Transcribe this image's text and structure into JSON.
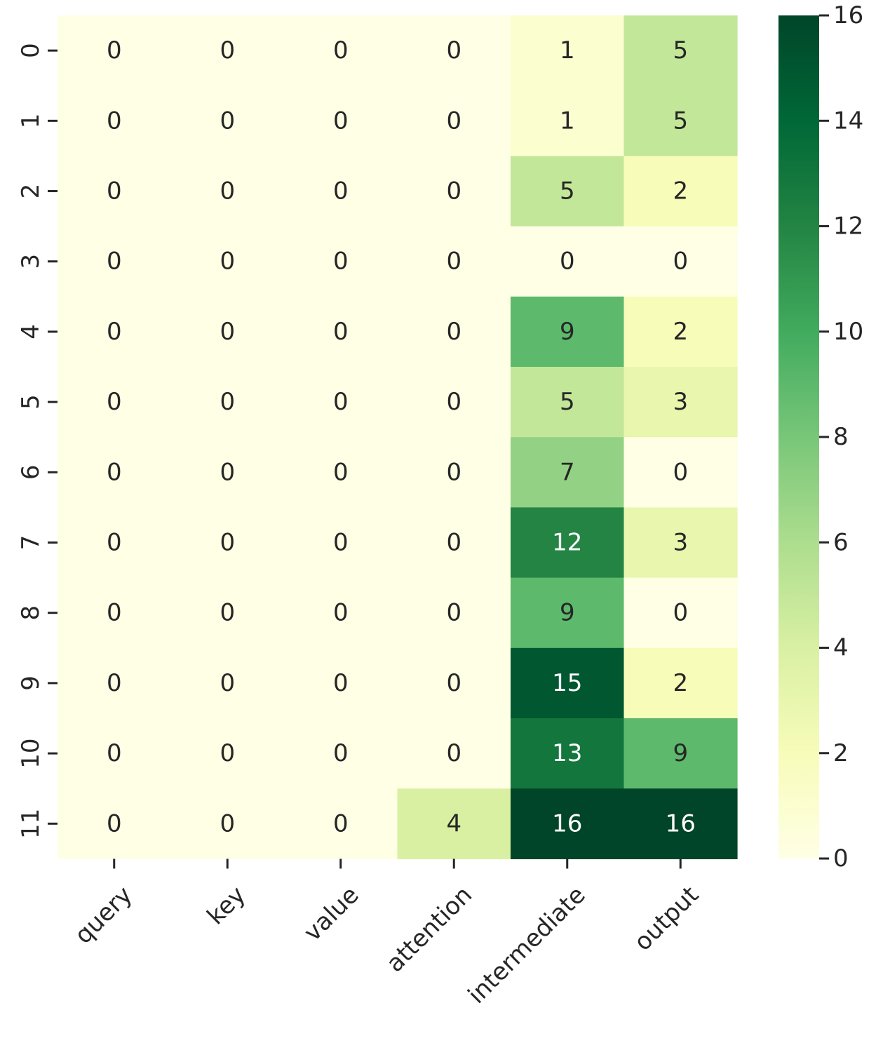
{
  "chart_data": {
    "type": "heatmap",
    "columns": [
      "query",
      "key",
      "value",
      "attention",
      "intermediate",
      "output"
    ],
    "rows": [
      "0",
      "1",
      "2",
      "3",
      "4",
      "5",
      "6",
      "7",
      "8",
      "9",
      "10",
      "11"
    ],
    "values": [
      [
        0,
        0,
        0,
        0,
        1,
        5
      ],
      [
        0,
        0,
        0,
        0,
        1,
        5
      ],
      [
        0,
        0,
        0,
        0,
        5,
        2
      ],
      [
        0,
        0,
        0,
        0,
        0,
        0
      ],
      [
        0,
        0,
        0,
        0,
        9,
        2
      ],
      [
        0,
        0,
        0,
        0,
        5,
        3
      ],
      [
        0,
        0,
        0,
        0,
        7,
        0
      ],
      [
        0,
        0,
        0,
        0,
        12,
        3
      ],
      [
        0,
        0,
        0,
        0,
        9,
        0
      ],
      [
        0,
        0,
        0,
        0,
        15,
        2
      ],
      [
        0,
        0,
        0,
        0,
        13,
        9
      ],
      [
        0,
        0,
        0,
        4,
        16,
        16
      ]
    ],
    "colorbar": {
      "range": [
        0,
        16
      ],
      "ticks": [
        "0",
        "2",
        "4",
        "6",
        "8",
        "10",
        "12",
        "14",
        "16"
      ],
      "colormap": "YlGn"
    },
    "annotated": true,
    "title": "",
    "xlabel": "",
    "ylabel": ""
  }
}
